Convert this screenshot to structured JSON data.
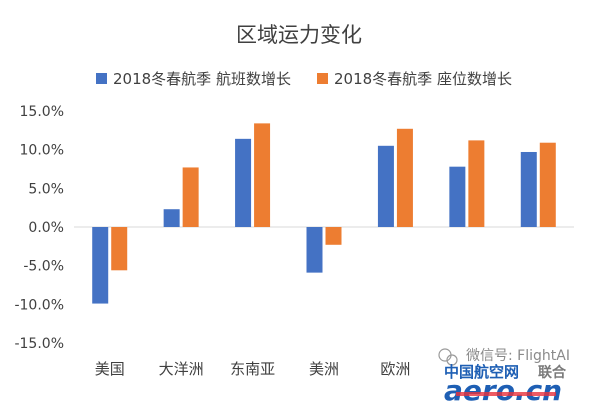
{
  "chart_data": {
    "type": "bar",
    "title": "区域运力变化",
    "categories": [
      "美国",
      "大洋洲",
      "东南亚",
      "美洲",
      "欧洲",
      "",
      ""
    ],
    "series": [
      {
        "name": "2018冬春航季 航班数增长",
        "color": "#4472C4",
        "values": [
          -9.9,
          2.3,
          11.4,
          -5.9,
          10.5,
          7.8,
          9.7
        ]
      },
      {
        "name": "2018冬春航季 座位数增长",
        "color": "#ED7D31",
        "values": [
          -5.6,
          7.7,
          13.4,
          -2.3,
          12.7,
          11.2,
          10.9
        ]
      }
    ],
    "ylim": [
      -15,
      15
    ],
    "yticks": [
      "15.0%",
      "10.0%",
      "5.0%",
      "0.0%",
      "-5.0%",
      "-10.0%",
      "-15.0%"
    ],
    "grid": false,
    "legend": "top"
  },
  "watermark": {
    "wechat_text": "微信号: FlightAI",
    "logo_cn": "中国航空网",
    "logo_en": "aero.cn",
    "partner_suffix": "联合"
  }
}
